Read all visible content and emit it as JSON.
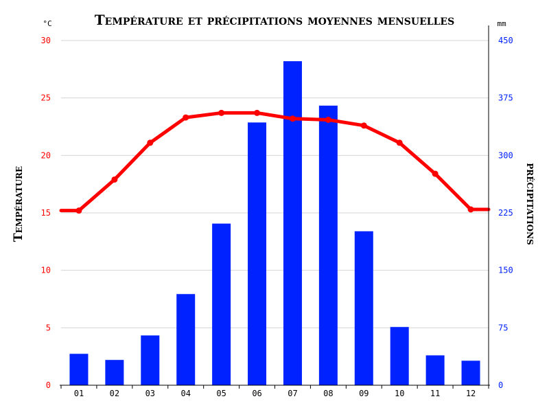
{
  "colors": {
    "temperature": "#ff0000",
    "precipitation": "#0022ff",
    "grid": "#d4d4d4",
    "axis": "#000000"
  },
  "chart_data": {
    "type": "bar",
    "title": "Température et précipitations moyennes mensuelles",
    "categories": [
      "01",
      "02",
      "03",
      "04",
      "05",
      "06",
      "07",
      "08",
      "09",
      "10",
      "11",
      "12"
    ],
    "left_axis": {
      "label": "Température",
      "unit": "°C",
      "range": [
        0,
        30
      ],
      "ticks": [
        "0",
        "5",
        "10",
        "15",
        "20",
        "25",
        "30"
      ]
    },
    "right_axis": {
      "label": "précipitations",
      "unit": "mm",
      "range": [
        0,
        450
      ],
      "ticks": [
        "0",
        "75",
        "150",
        "225",
        "300",
        "375",
        "450"
      ]
    },
    "grid": true,
    "series": [
      {
        "type": "bar",
        "axis": "right",
        "values": [
          41,
          33,
          65,
          119,
          211,
          343,
          423,
          365,
          201,
          76,
          39,
          32
        ]
      },
      {
        "type": "line",
        "axis": "left",
        "values": [
          15.2,
          17.9,
          21.1,
          23.3,
          23.7,
          23.7,
          23.2,
          23.1,
          22.6,
          21.1,
          18.4,
          15.3
        ]
      }
    ]
  }
}
